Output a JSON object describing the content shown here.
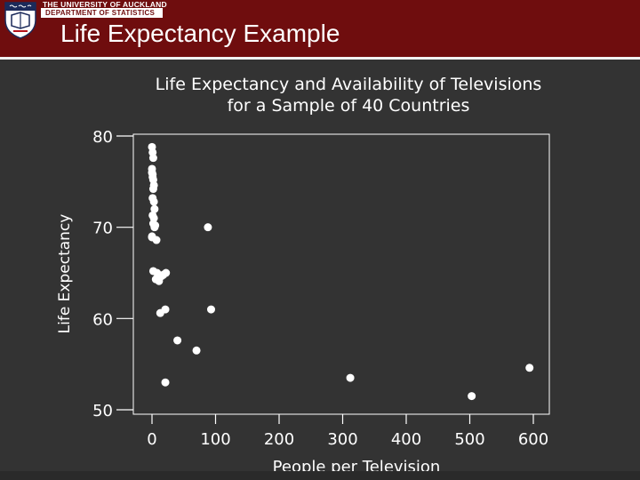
{
  "header": {
    "university": "THE UNIVERSITY OF AUCKLAND",
    "department": "DEPARTMENT OF STATISTICS",
    "slide_title": "Life Expectancy Example"
  },
  "colors": {
    "header_bg": "#6f0d0e",
    "slide_bg": "#333333",
    "text": "#ffffff",
    "points": "#ffffff"
  },
  "chart_data": {
    "type": "scatter",
    "title": "Life Expectancy and Availability of Televisions",
    "subtitle": "for a Sample of 40 Countries",
    "xlabel": "People per Television",
    "ylabel": "Life Expectancy",
    "xlim": [
      -15,
      610
    ],
    "ylim": [
      50,
      81
    ],
    "xticks": [
      0,
      100,
      200,
      300,
      400,
      500,
      600
    ],
    "yticks": [
      50,
      60,
      70,
      80
    ],
    "grid": false,
    "legend": "none",
    "points": [
      [
        0,
        78.8
      ],
      [
        1,
        78.2
      ],
      [
        2,
        77.6
      ],
      [
        0,
        76.4
      ],
      [
        1,
        75.8
      ],
      [
        2,
        75.2
      ],
      [
        3,
        74.6
      ],
      [
        0,
        76.0
      ],
      [
        1,
        73.2
      ],
      [
        4,
        72.0
      ],
      [
        3,
        71.0
      ],
      [
        2,
        70.4
      ],
      [
        4,
        70.0
      ],
      [
        0,
        69.0
      ],
      [
        7,
        68.6
      ],
      [
        2,
        65.2
      ],
      [
        6,
        64.3
      ],
      [
        9,
        64.5
      ],
      [
        14,
        64.6
      ],
      [
        18,
        64.8
      ],
      [
        22,
        65.0
      ],
      [
        13,
        60.6
      ],
      [
        21,
        61.0
      ],
      [
        40,
        57.6
      ],
      [
        70,
        56.5
      ],
      [
        88,
        70.0
      ],
      [
        93,
        61.0
      ],
      [
        21,
        53.0
      ],
      [
        312,
        53.5
      ],
      [
        503,
        51.5
      ],
      [
        594,
        54.6
      ],
      [
        1,
        75.5
      ],
      [
        2,
        74.2
      ],
      [
        3,
        72.8
      ],
      [
        1,
        71.3
      ],
      [
        5,
        70.2
      ],
      [
        0,
        68.9
      ],
      [
        8,
        65.0
      ],
      [
        11,
        64.1
      ],
      [
        16,
        64.7
      ]
    ]
  }
}
